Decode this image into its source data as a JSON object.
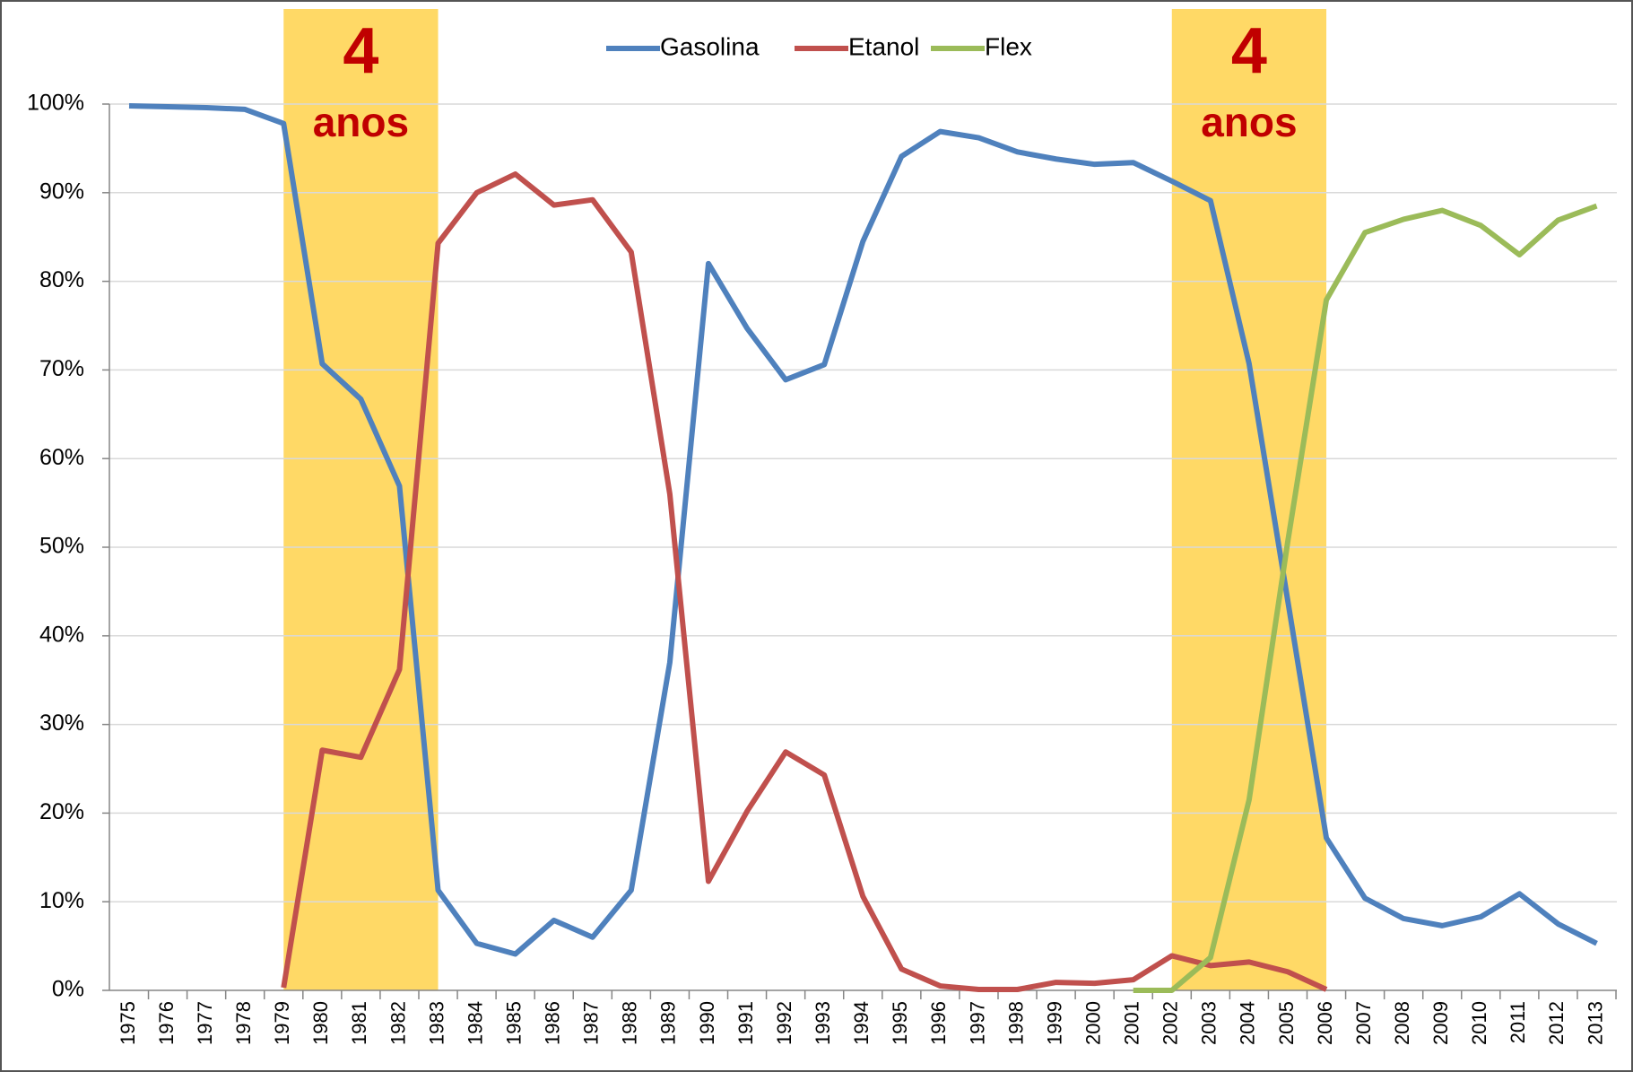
{
  "chart_data": {
    "type": "line",
    "categories": [
      "1975",
      "1976",
      "1977",
      "1978",
      "1979",
      "1980",
      "1981",
      "1982",
      "1983",
      "1984",
      "1985",
      "1986",
      "1987",
      "1988",
      "1989",
      "1990",
      "1991",
      "1992",
      "1993",
      "1994",
      "1995",
      "1996",
      "1997",
      "1998",
      "1999",
      "2000",
      "2001",
      "2002",
      "2003",
      "2004",
      "2005",
      "2006",
      "2007",
      "2008",
      "2009",
      "2010",
      "2011",
      "2012",
      "2013"
    ],
    "series": [
      {
        "name": "Gasolina",
        "color": "#4f81bd",
        "values": [
          99.8,
          99.7,
          99.6,
          99.4,
          97.8,
          70.7,
          66.7,
          56.9,
          11.3,
          5.3,
          4.1,
          7.9,
          6.0,
          11.3,
          37.0,
          82.0,
          74.7,
          68.9,
          70.6,
          84.5,
          94.1,
          96.9,
          96.2,
          94.6,
          93.8,
          93.2,
          93.4,
          91.3,
          89.1,
          70.7,
          44.0,
          17.2,
          10.4,
          8.1,
          7.3,
          8.3,
          10.9,
          7.5,
          5.3
        ]
      },
      {
        "name": "Etanol",
        "color": "#c0504d",
        "values": [
          null,
          null,
          null,
          null,
          0.3,
          27.1,
          26.3,
          36.2,
          84.3,
          90.0,
          92.1,
          88.6,
          89.2,
          83.3,
          56.0,
          12.3,
          20.2,
          26.9,
          24.3,
          10.6,
          2.4,
          0.5,
          0.1,
          0.1,
          0.9,
          0.8,
          1.2,
          3.9,
          2.8,
          3.2,
          2.1,
          0.1,
          null,
          null,
          null,
          null,
          null,
          null,
          null
        ]
      },
      {
        "name": "Flex",
        "color": "#9bbb59",
        "values": [
          null,
          null,
          null,
          null,
          null,
          null,
          null,
          null,
          null,
          null,
          null,
          null,
          null,
          null,
          null,
          null,
          null,
          null,
          null,
          null,
          null,
          null,
          null,
          null,
          null,
          null,
          0,
          0,
          3.7,
          21.5,
          50.6,
          77.9,
          85.5,
          87.0,
          88.0,
          86.3,
          83.0,
          86.9,
          88.5
        ]
      }
    ],
    "ylim": [
      0,
      100
    ],
    "yticks": [
      {
        "value": 0,
        "label": "0%"
      },
      {
        "value": 10,
        "label": "10%"
      },
      {
        "value": 20,
        "label": "20%"
      },
      {
        "value": 30,
        "label": "30%"
      },
      {
        "value": 40,
        "label": "40%"
      },
      {
        "value": 50,
        "label": "50%"
      },
      {
        "value": 60,
        "label": "60%"
      },
      {
        "value": 70,
        "label": "70%"
      },
      {
        "value": 80,
        "label": "80%"
      },
      {
        "value": 90,
        "label": "90%"
      },
      {
        "value": 100,
        "label": "100%"
      }
    ],
    "grid": true,
    "legend": "top",
    "highlights": [
      {
        "from": "1979",
        "to": "1983",
        "color": "#ffd966",
        "number": "4",
        "label": "anos"
      },
      {
        "from": "2002",
        "to": "2006",
        "color": "#ffd966",
        "number": "4",
        "label": "anos"
      }
    ]
  }
}
